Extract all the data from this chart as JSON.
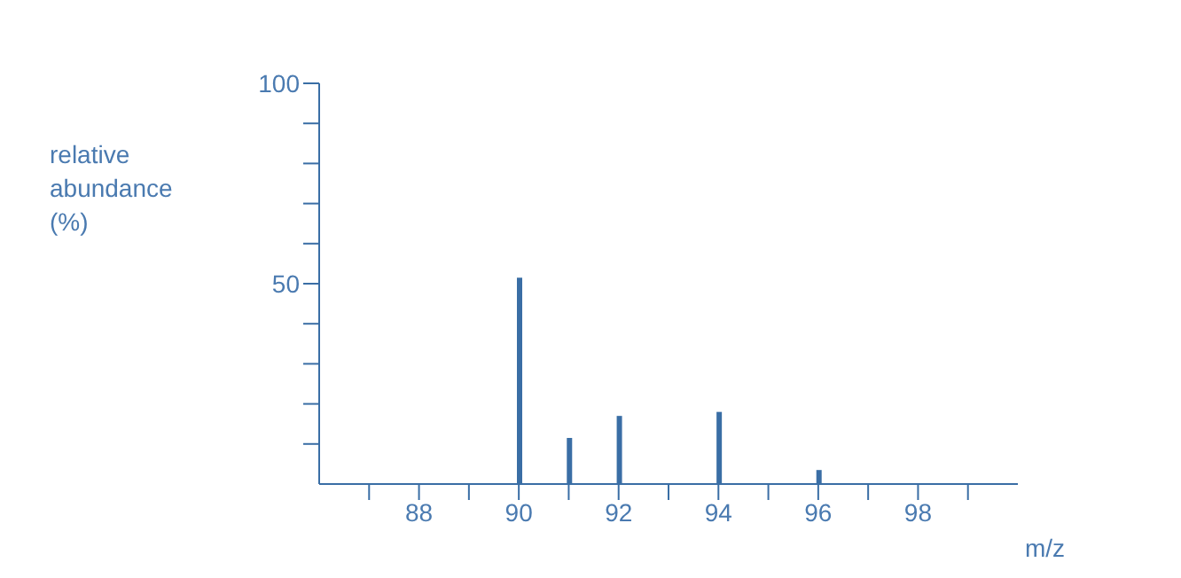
{
  "chart_data": {
    "type": "bar",
    "xlabel": "m/z",
    "ylabel": "relative abundance (%)",
    "x": [
      90,
      91,
      92,
      94,
      96
    ],
    "values": [
      51.5,
      11.5,
      17,
      18,
      3.5
    ],
    "color": "#3a6ea5",
    "xlim": [
      86,
      100
    ],
    "xticks": [
      {
        "value": 87,
        "label": null
      },
      88,
      {
        "value": 89,
        "label": null
      },
      90,
      {
        "value": 91,
        "label": null
      },
      92,
      {
        "value": 93,
        "label": null
      },
      94,
      {
        "value": 95,
        "label": null
      },
      96,
      {
        "value": 97,
        "label": null
      },
      98,
      {
        "value": 99,
        "label": null
      }
    ],
    "ylim": [
      0,
      100
    ],
    "yticks": [
      {
        "value": 10,
        "label": null
      },
      {
        "value": 20,
        "label": null
      },
      {
        "value": 30,
        "label": null
      },
      {
        "value": 40,
        "label": null
      },
      50,
      {
        "value": 60,
        "label": null
      },
      {
        "value": 70,
        "label": null
      },
      {
        "value": 80,
        "label": null
      },
      {
        "value": 90,
        "label": null
      },
      100
    ],
    "grid": false,
    "legend": false
  }
}
